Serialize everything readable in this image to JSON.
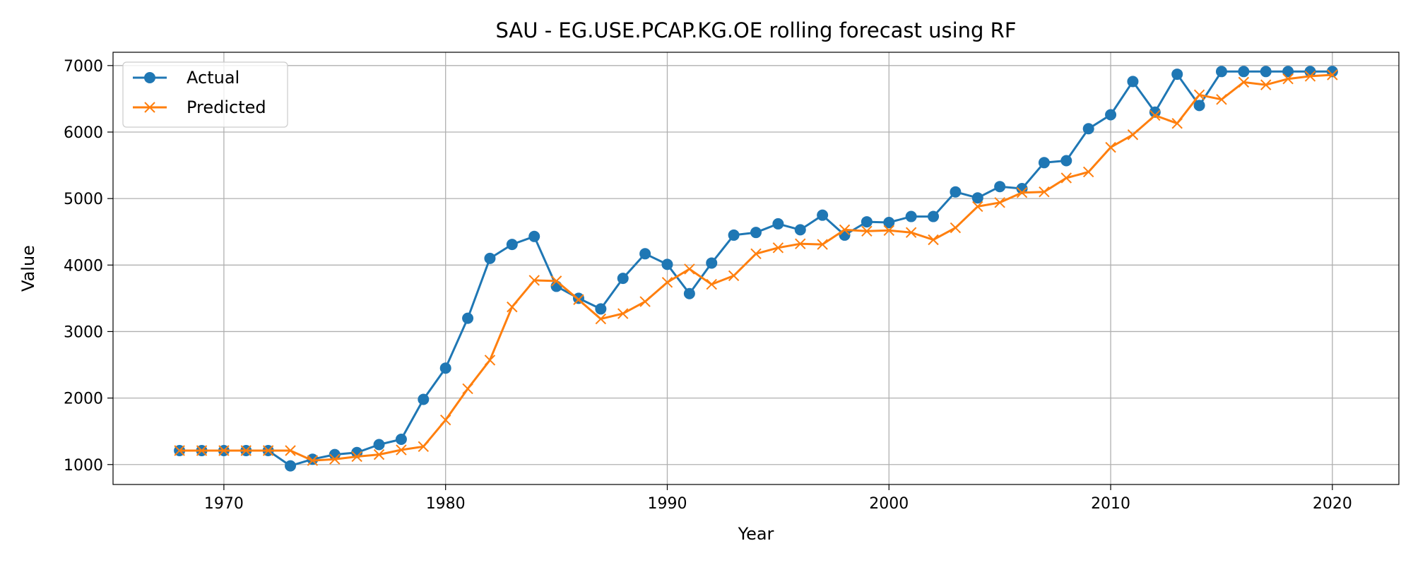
{
  "chart_data": {
    "type": "line",
    "title": "SAU - EG.USE.PCAP.KG.OE rolling forecast using RF",
    "xlabel": "Year",
    "ylabel": "Value",
    "xlim": [
      1965,
      2023
    ],
    "ylim": [
      700,
      7200
    ],
    "xticks": [
      1970,
      1980,
      1990,
      2000,
      2010,
      2020
    ],
    "yticks": [
      1000,
      2000,
      3000,
      4000,
      5000,
      6000,
      7000
    ],
    "grid": true,
    "legend_position": "top-left",
    "x": [
      1968,
      1969,
      1970,
      1971,
      1972,
      1973,
      1974,
      1975,
      1976,
      1977,
      1978,
      1979,
      1980,
      1981,
      1982,
      1983,
      1984,
      1985,
      1986,
      1987,
      1988,
      1989,
      1990,
      1991,
      1992,
      1993,
      1994,
      1995,
      1996,
      1997,
      1998,
      1999,
      2000,
      2001,
      2002,
      2003,
      2004,
      2005,
      2006,
      2007,
      2008,
      2009,
      2010,
      2011,
      2012,
      2013,
      2014,
      2015,
      2016,
      2017,
      2018,
      2019,
      2020
    ],
    "series": [
      {
        "name": "Actual",
        "color": "#1f77b4",
        "marker": "circle",
        "values": [
          1210,
          1210,
          1210,
          1210,
          1210,
          980,
          1080,
          1150,
          1180,
          1300,
          1380,
          1980,
          2450,
          3200,
          4100,
          4310,
          4430,
          3680,
          3500,
          3340,
          3800,
          4170,
          4010,
          3570,
          4030,
          4450,
          4490,
          4620,
          4530,
          4750,
          4450,
          4650,
          4640,
          4730,
          4730,
          5100,
          5010,
          5180,
          5150,
          5540,
          5570,
          6050,
          6260,
          6760,
          6300,
          6870,
          6400,
          6910,
          6910,
          6910,
          6910,
          6910,
          6910
        ]
      },
      {
        "name": "Predicted",
        "color": "#ff7f0e",
        "marker": "x",
        "values": [
          1210,
          1210,
          1210,
          1210,
          1210,
          1210,
          1060,
          1080,
          1120,
          1150,
          1220,
          1270,
          1670,
          2140,
          2570,
          3370,
          3770,
          3760,
          3480,
          3190,
          3270,
          3450,
          3740,
          3940,
          3710,
          3840,
          4170,
          4260,
          4320,
          4310,
          4530,
          4510,
          4520,
          4490,
          4380,
          4560,
          4880,
          4940,
          5090,
          5100,
          5310,
          5400,
          5770,
          5960,
          6250,
          6130,
          6560,
          6490,
          6750,
          6710,
          6800,
          6840,
          6860
        ]
      }
    ]
  }
}
